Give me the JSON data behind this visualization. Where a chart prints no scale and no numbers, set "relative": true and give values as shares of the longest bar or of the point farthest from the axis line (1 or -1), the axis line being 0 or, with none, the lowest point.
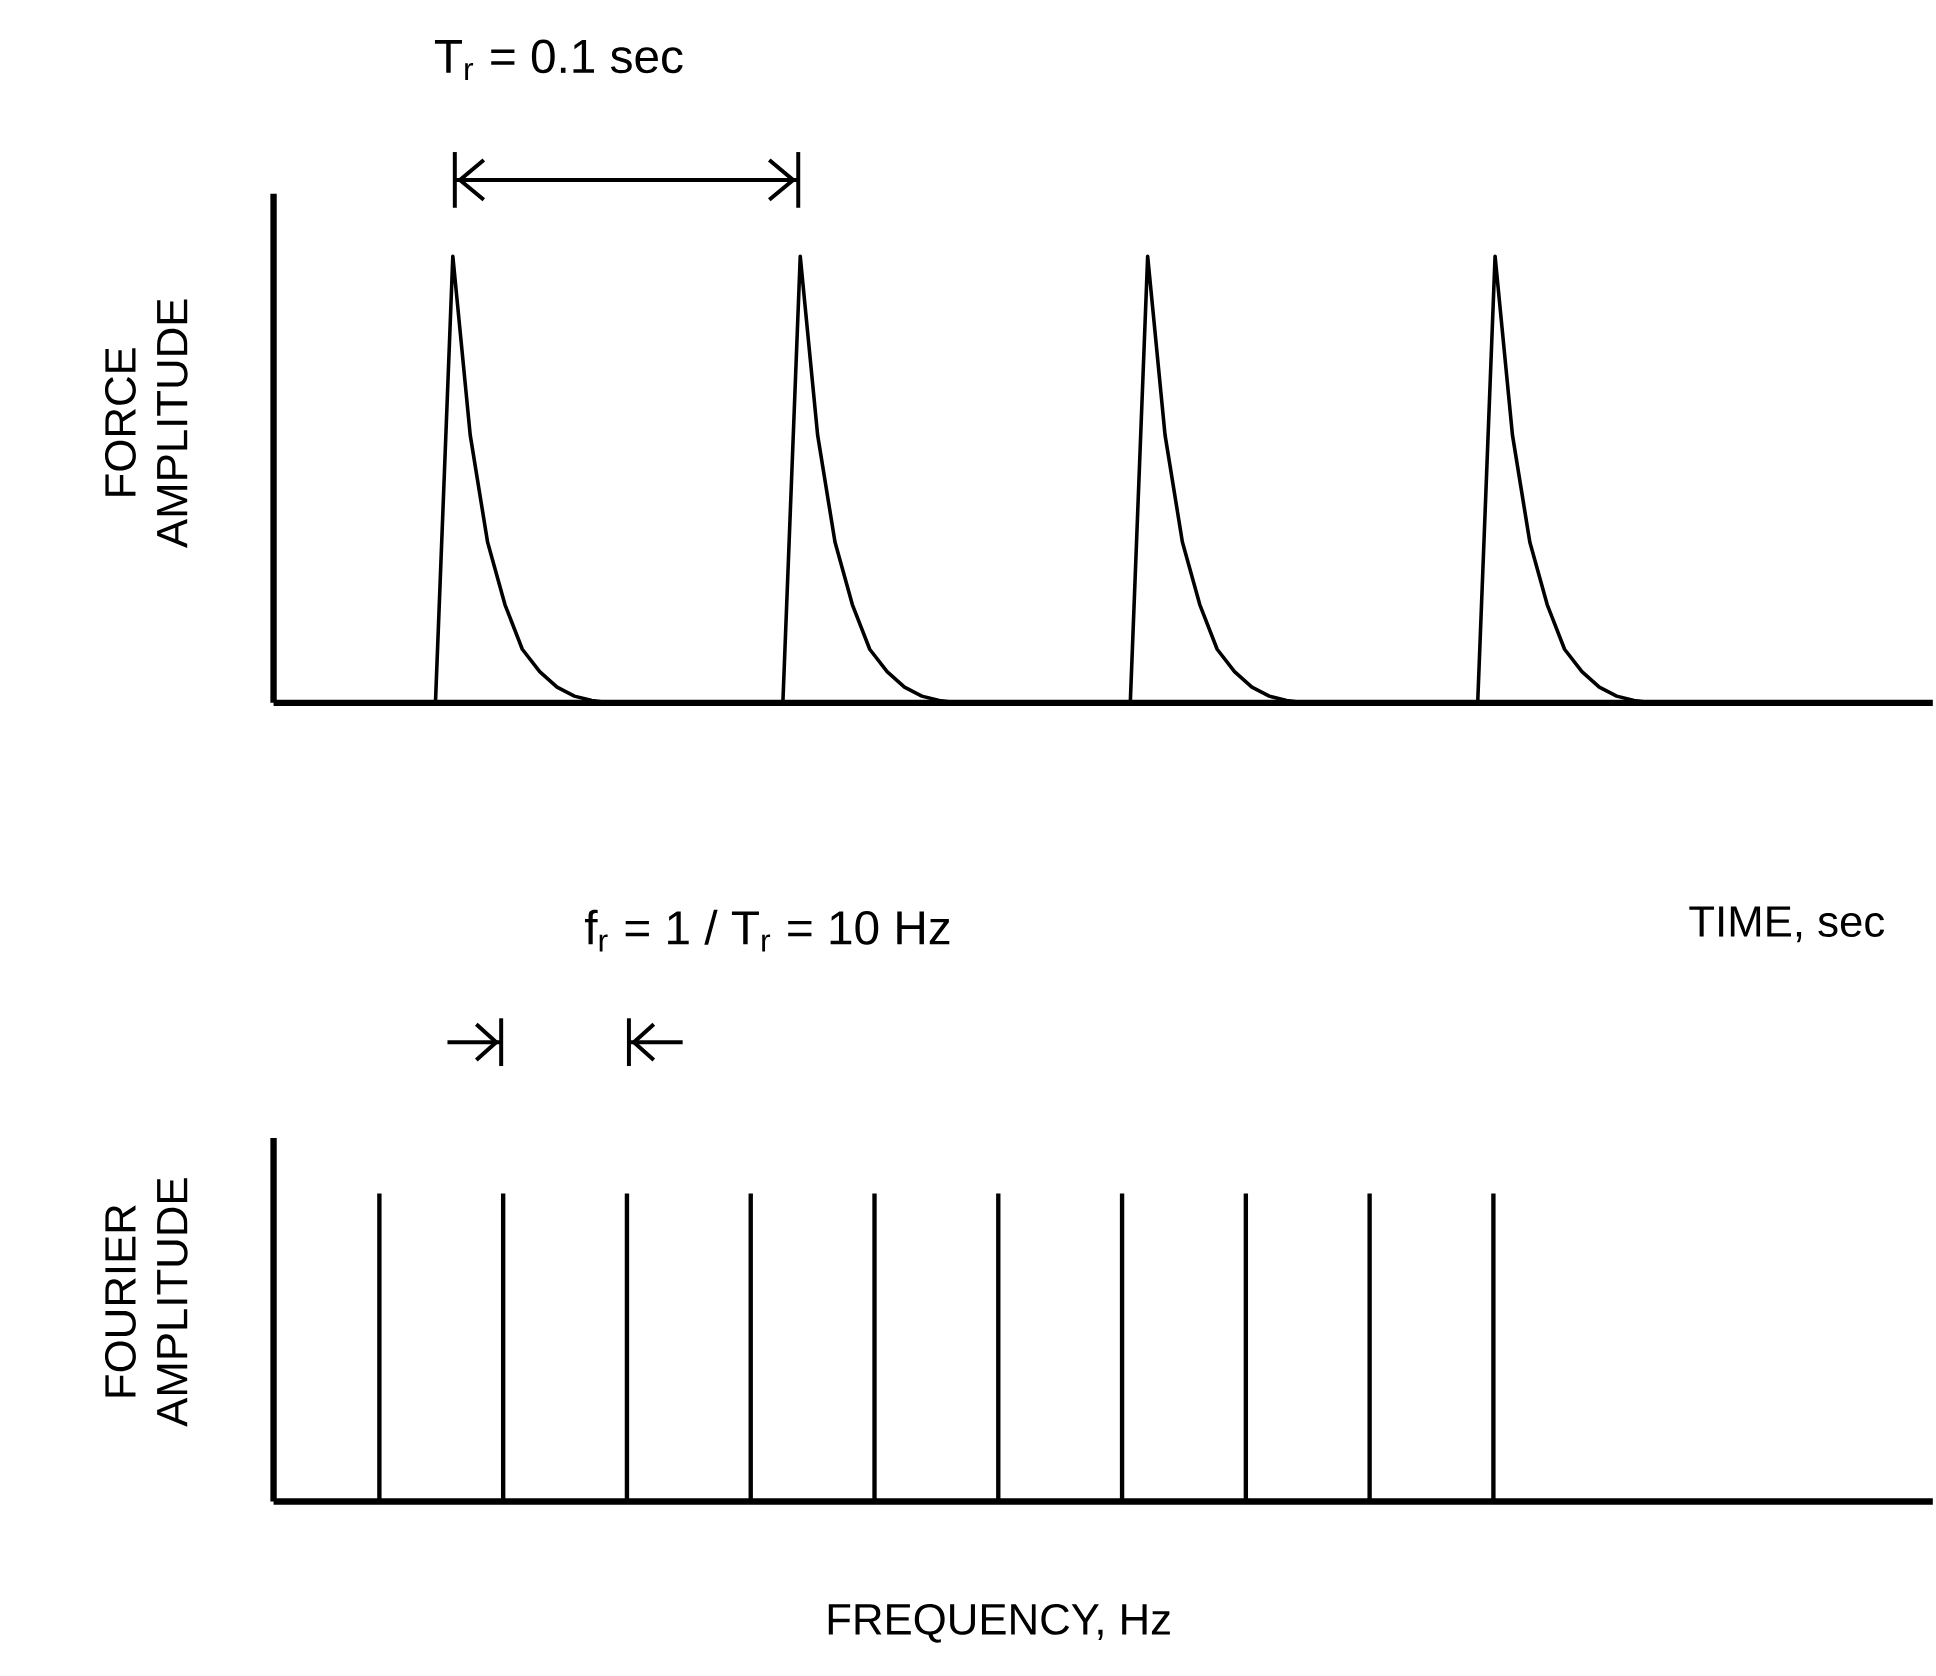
{
  "chart_data": [
    {
      "type": "line",
      "xlabel": "TIME, sec",
      "ylabel": "FORCE AMPLITUDE",
      "annotations": [
        "T$_{r}$ = 0.1 sec"
      ],
      "relative": true,
      "color": "#000000",
      "tick_labels": false,
      "categories": [
        null,
        null,
        null,
        null,
        null,
        null,
        null,
        null,
        null,
        null,
        null,
        null,
        null,
        null,
        null,
        null,
        null,
        null,
        null,
        null,
        null,
        null,
        null,
        null,
        null,
        null,
        null,
        null,
        null,
        null,
        null,
        null,
        null,
        null,
        null,
        null,
        null,
        null,
        null,
        null,
        null,
        null,
        null,
        null,
        null,
        null,
        null,
        null,
        null,
        null,
        null,
        null,
        null,
        null,
        null,
        null,
        null,
        null,
        null,
        null,
        null,
        null,
        null,
        null,
        null,
        null,
        null,
        null,
        null,
        null,
        null
      ],
      "values": [
        0,
        1,
        0.6,
        0.36,
        0.22,
        0.12,
        0.07,
        0.035,
        0.015,
        0.005,
        0,
        0,
        0,
        0,
        0,
        0,
        0,
        0,
        0,
        0,
        0,
        1,
        0.6,
        0.36,
        0.22,
        0.12,
        0.07,
        0.035,
        0.015,
        0.005,
        0,
        0,
        0,
        0,
        0,
        0,
        0,
        0,
        0,
        0,
        0,
        1,
        0.6,
        0.36,
        0.22,
        0.12,
        0.07,
        0.035,
        0.015,
        0.005,
        0,
        0,
        0,
        0,
        0,
        0,
        0,
        0,
        0,
        0,
        0,
        1,
        0.6,
        0.36,
        0.22,
        0.12,
        0.07,
        0.035,
        0.015,
        0.005,
        0
      ]
    },
    {
      "type": "bar",
      "xlabel": "FREQUENCY, Hz",
      "ylabel": "FOURIER AMPLITUDE",
      "annotations": [
        "f$_{r}$ = 1 / T$_{r}$ = 10 Hz"
      ],
      "relative": true,
      "color": "#000000",
      "tick_labels": false,
      "categories": [
        null,
        null,
        null,
        null,
        null,
        null,
        null,
        null,
        null,
        null
      ],
      "values": [
        1,
        1,
        1,
        1,
        1,
        1,
        1,
        1,
        1,
        1
      ]
    }
  ]
}
